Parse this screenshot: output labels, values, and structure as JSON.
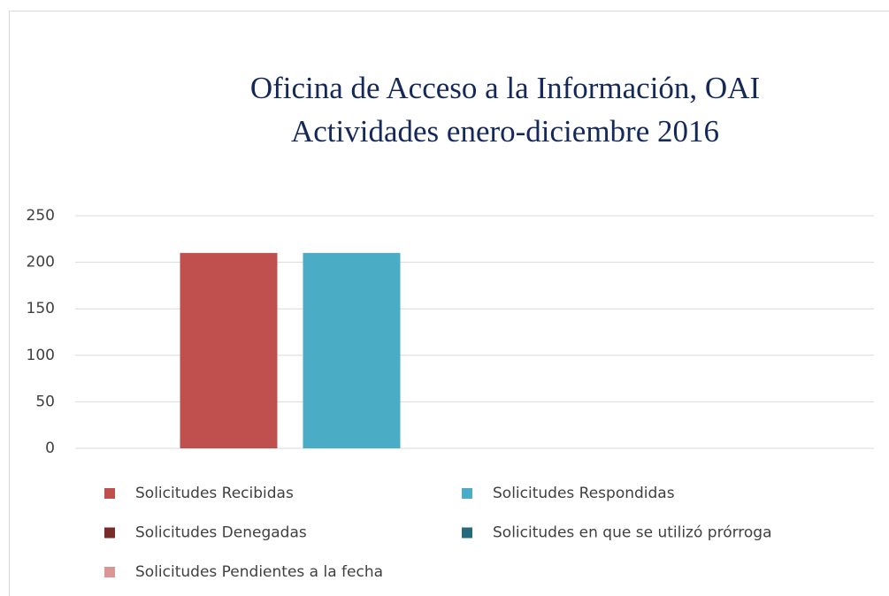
{
  "chart_data": {
    "type": "bar",
    "title": "Oficina de Acceso a la Información, OAI",
    "subtitle": "Actividades enero-diciembre 2016",
    "categories": [
      null
    ],
    "series": [
      {
        "name": "Solicitudes Recibidas",
        "color": "#c0504d",
        "values": [
          210
        ]
      },
      {
        "name": "Solicitudes Respondidas",
        "color": "#4bacc6",
        "values": [
          210
        ]
      },
      {
        "name": "Solicitudes Denegadas",
        "color": "#772c2a",
        "values": [
          0
        ]
      },
      {
        "name": "Solicitudes en que se utilizó prórroga",
        "color": "#276a7c",
        "values": [
          0
        ]
      },
      {
        "name": "Solicitudes Pendientes a la fecha",
        "color": "#d99694",
        "values": [
          0
        ]
      }
    ],
    "ylim": [
      0,
      250
    ],
    "yticks": [
      0,
      50,
      100,
      150,
      200,
      250
    ],
    "grid": true,
    "legend": "bottom"
  }
}
